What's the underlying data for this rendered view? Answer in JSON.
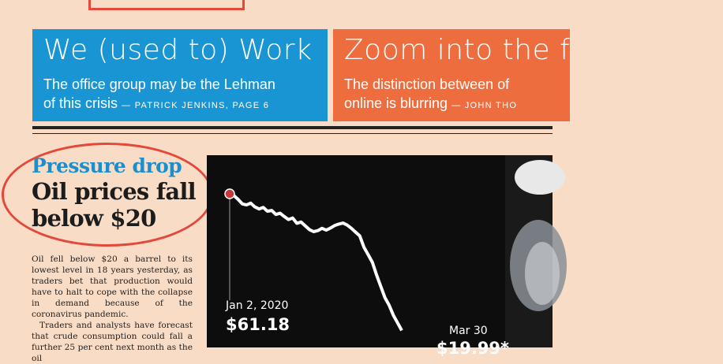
{
  "banners": [
    {
      "title": "We (used to) Work",
      "line1": "The office group may be the Lehman",
      "line2": "of this crisis",
      "byline": "— PATRICK JENKINS, PAGE 6",
      "color": "#1a95d3"
    },
    {
      "title": "Zoom into the f",
      "line1": "The distinction between of",
      "line2": "online is blurring",
      "byline": "— JOHN THO",
      "color": "#ee6d3f"
    }
  ],
  "headline": {
    "kicker": "Pressure drop",
    "main": "Oil prices fall below $20"
  },
  "article": {
    "paragraph1": "Oil fell below $20 a barrel to its lowest level in 18 years yesterday, as traders bet that production would have to halt to cope with the collapse in demand because of the coronavirus pandemic.",
    "paragraph2": "Traders and analysts have forecast that crude consumption could fall a further 25 per cent next month as the oil"
  },
  "accent_color": "#e3483a",
  "chart_data": {
    "type": "line",
    "series": [
      {
        "values": [
          61.2,
          60.5,
          59.0,
          57.2,
          56.8,
          57.5,
          56.0,
          55.2,
          55.8,
          54.3,
          54.6,
          53.0,
          53.5,
          52.2,
          51.0,
          51.6,
          49.5,
          50.0,
          48.5,
          47.0,
          46.2,
          46.6,
          47.5,
          46.8,
          47.6,
          48.6,
          49.2,
          49.6,
          48.8,
          47.5,
          46.0,
          44.5,
          40.0,
          37.0,
          34.0,
          29.0,
          24.5,
          20.0,
          17.0,
          13.0,
          10.0,
          7.0
        ]
      }
    ],
    "annotations": [
      {
        "date": "Jan 2, 2020",
        "value": "$61.18"
      },
      {
        "date": "Mar 30",
        "value": "$19.99*"
      }
    ],
    "line_color": "#ffffff",
    "marker_color": "#c9363a"
  }
}
